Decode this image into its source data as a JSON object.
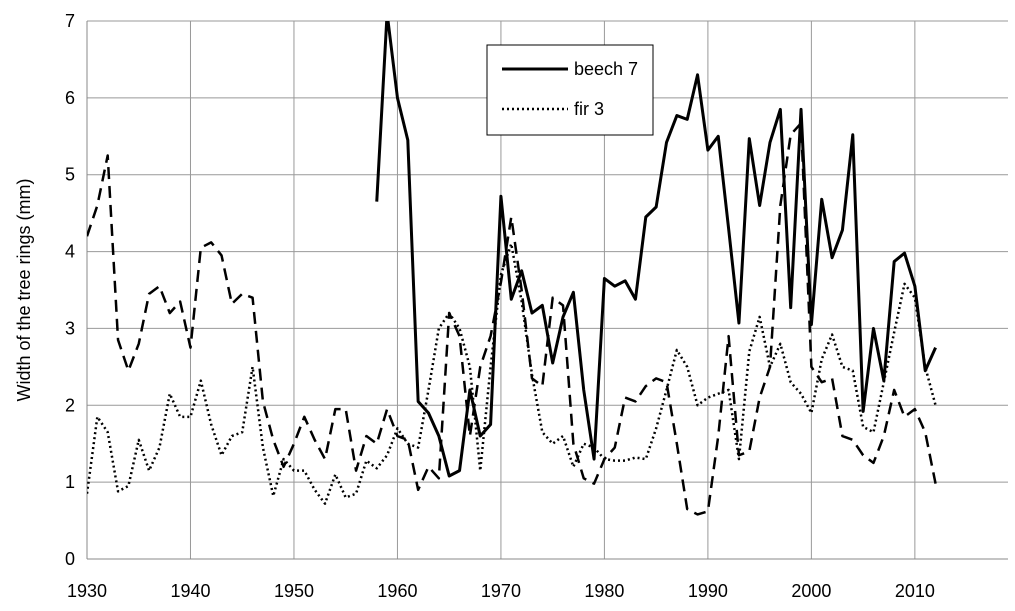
{
  "chart_data": {
    "type": "line",
    "y_label": "Width of the tree rings (mm)",
    "x": [
      1930,
      1931,
      1932,
      1933,
      1934,
      1935,
      1936,
      1937,
      1938,
      1939,
      1940,
      1941,
      1942,
      1943,
      1944,
      1945,
      1946,
      1947,
      1948,
      1949,
      1950,
      1951,
      1952,
      1953,
      1954,
      1955,
      1956,
      1957,
      1958,
      1959,
      1960,
      1961,
      1962,
      1963,
      1964,
      1965,
      1966,
      1967,
      1968,
      1969,
      1970,
      1971,
      1972,
      1973,
      1974,
      1975,
      1976,
      1977,
      1978,
      1979,
      1980,
      1981,
      1982,
      1983,
      1984,
      1985,
      1986,
      1987,
      1988,
      1989,
      1990,
      1991,
      1992,
      1993,
      1994,
      1995,
      1996,
      1997,
      1998,
      1999,
      2000,
      2001,
      2002,
      2003,
      2004,
      2005,
      2006,
      2007,
      2008,
      2009,
      2010,
      2011,
      2012
    ],
    "series": [
      {
        "name": "beech 7",
        "color": "#000000",
        "style": "solid",
        "values": [
          null,
          null,
          null,
          null,
          null,
          null,
          null,
          null,
          null,
          null,
          null,
          null,
          null,
          null,
          null,
          null,
          null,
          null,
          null,
          null,
          null,
          null,
          null,
          null,
          null,
          null,
          null,
          null,
          4.65,
          7.1,
          6.0,
          5.45,
          2.05,
          1.9,
          1.6,
          1.08,
          1.15,
          2.2,
          1.6,
          1.75,
          4.72,
          3.38,
          3.75,
          3.2,
          3.3,
          2.55,
          3.15,
          3.47,
          2.2,
          1.3,
          3.65,
          3.55,
          3.62,
          3.38,
          4.45,
          4.58,
          5.42,
          5.77,
          5.72,
          6.3,
          5.32,
          5.5,
          4.3,
          3.07,
          5.47,
          4.6,
          5.42,
          5.85,
          3.27,
          5.85,
          3.05,
          4.68,
          3.92,
          4.28,
          5.52,
          1.92,
          3.0,
          2.32,
          3.87,
          3.98,
          3.55,
          2.45,
          2.75
        ]
      },
      {
        "name": "fir 3",
        "color": "#000000",
        "style": "dotted",
        "values": [
          0.85,
          1.85,
          1.65,
          0.88,
          0.95,
          1.55,
          1.15,
          1.45,
          2.15,
          1.85,
          1.85,
          2.32,
          1.75,
          1.35,
          1.6,
          1.65,
          2.5,
          1.45,
          0.82,
          1.3,
          1.15,
          1.15,
          0.9,
          0.72,
          1.1,
          0.8,
          0.85,
          1.28,
          1.18,
          1.35,
          1.7,
          1.5,
          1.45,
          2.2,
          3.0,
          3.2,
          3.0,
          2.5,
          1.15,
          2.5,
          3.7,
          4.1,
          3.35,
          2.4,
          1.65,
          1.5,
          1.6,
          1.2,
          1.5,
          1.45,
          1.3,
          1.28,
          1.28,
          1.32,
          1.3,
          1.7,
          2.2,
          2.72,
          2.5,
          2.0,
          2.1,
          2.15,
          2.2,
          1.3,
          2.7,
          3.15,
          2.5,
          2.8,
          2.3,
          2.15,
          1.9,
          2.6,
          2.92,
          2.5,
          2.45,
          1.72,
          1.65,
          2.3,
          2.95,
          3.58,
          3.4,
          2.5,
          2.0
        ]
      },
      {
        "color": "#000000",
        "style": "dashed",
        "values": [
          4.2,
          4.6,
          5.25,
          2.85,
          2.45,
          2.8,
          3.45,
          3.55,
          3.2,
          3.35,
          2.75,
          4.05,
          4.12,
          3.95,
          3.32,
          3.45,
          3.4,
          2.05,
          1.55,
          1.2,
          1.5,
          1.85,
          1.55,
          1.3,
          1.95,
          1.95,
          1.15,
          1.6,
          1.5,
          1.95,
          1.6,
          1.55,
          0.9,
          1.2,
          1.05,
          3.2,
          2.9,
          1.6,
          2.5,
          2.9,
          3.6,
          4.45,
          3.5,
          2.35,
          2.25,
          3.4,
          3.3,
          1.5,
          1.05,
          0.98,
          1.3,
          1.45,
          2.1,
          2.05,
          2.25,
          2.35,
          2.3,
          1.5,
          0.65,
          0.58,
          0.62,
          1.6,
          2.9,
          1.35,
          1.4,
          2.1,
          2.5,
          4.6,
          5.52,
          5.67,
          2.5,
          2.3,
          2.35,
          1.6,
          1.55,
          1.35,
          1.25,
          1.6,
          2.2,
          1.85,
          1.95,
          1.65,
          0.98
        ]
      }
    ],
    "xlim": [
      1930,
      2019
    ],
    "xticks": [
      1930,
      1940,
      1950,
      1960,
      1970,
      1980,
      1990,
      2000,
      2010
    ],
    "ylim": [
      0,
      7
    ],
    "yticks": [
      0,
      1,
      2,
      3,
      4,
      5,
      6,
      7
    ],
    "grid": true
  }
}
